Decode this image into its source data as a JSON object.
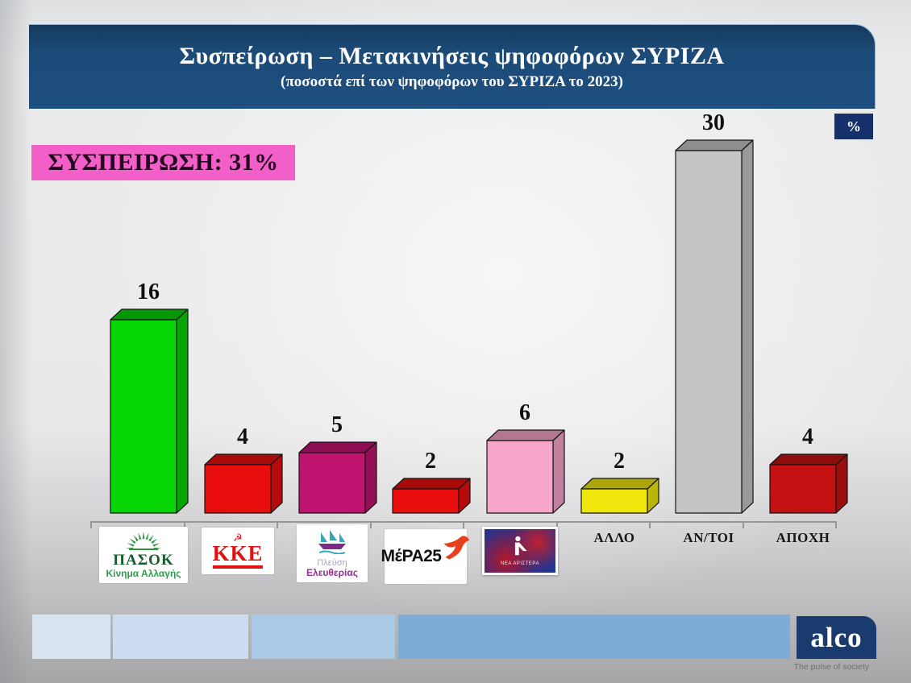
{
  "header": {
    "title": "Συσπείρωση – Μετακινήσεις ψηφοφόρων ΣΥΡΙΖΑ",
    "subtitle": "(ποσοστά επί των ψηφοφόρων του ΣΥΡΙΖΑ το 2023)",
    "bg_color": "#1c4b78"
  },
  "badge": {
    "label": "%"
  },
  "cohesion": {
    "label": "ΣΥΣΠΕΙΡΩΣΗ: 31%",
    "bg_color": "#f35fc9"
  },
  "chart_data": {
    "type": "bar",
    "title": "Συσπείρωση – Μετακινήσεις ψηφοφόρων ΣΥΡΙΖΑ",
    "subtitle": "(ποσοστά επί των ψηφοφόρων του ΣΥΡΙΖΑ το 2023)",
    "unit": "%",
    "categories": [
      "ΠΑΣΟΚ – Κίνημα Αλλαγής",
      "ΚΚΕ",
      "Πλεύση Ελευθερίας",
      "ΜέΡΑ25",
      "ΝΕΑ ΑΡΙΣΤΕΡΑ",
      "ΑΛΛΟ",
      "ΑΝ/ΤΟΙ",
      "ΑΠΟΧΗ"
    ],
    "values": [
      16,
      4,
      5,
      2,
      6,
      2,
      30,
      4
    ],
    "bar_colors": [
      "#06d506",
      "#ea0d0d",
      "#bf1370",
      "#ea0d0d",
      "#f7a6ca",
      "#f0e70c",
      "#c5c5c5",
      "#c41212"
    ],
    "annotation": "ΣΥΣΠΕΙΡΩΣΗ: 31%",
    "ylim": [
      0,
      32
    ],
    "grid": false,
    "legend": "none",
    "style": "3d-bars"
  },
  "slots": [
    {
      "id": "pasok",
      "type": "logo",
      "line1": "ΠΑΣΟΚ",
      "line2": "Κίνημα Αλλαγής"
    },
    {
      "id": "kke",
      "type": "logo",
      "line1": "ΚΚΕ"
    },
    {
      "id": "plefsi-eleftherias",
      "type": "logo",
      "line1": "Πλεύση",
      "line2": "Ελευθερίας"
    },
    {
      "id": "mera25",
      "type": "logo",
      "line1": "ΜέΡΑ25"
    },
    {
      "id": "nea-aristera",
      "type": "logo",
      "line1": "ΝΕΑ ΑΡΙΣΤΕΡΑ"
    },
    {
      "id": "allo",
      "type": "text",
      "label": "ΑΛΛΟ"
    },
    {
      "id": "antoi",
      "type": "text",
      "label": "ΑΝ/ΤΟΙ"
    },
    {
      "id": "apochi",
      "type": "text",
      "label": "ΑΠΟΧΗ"
    }
  ],
  "footer": {
    "brand": "alco",
    "tagline": "The pulse of society",
    "stripe_colors": [
      "#d9e4f1",
      "#cddcf0",
      "#aac9e7",
      "#7fabd7"
    ],
    "alco_bg": "#1a3b6d"
  },
  "colors": {
    "axis": "#97979a",
    "badge_bg": "#16306b",
    "value_label": "#111111"
  }
}
